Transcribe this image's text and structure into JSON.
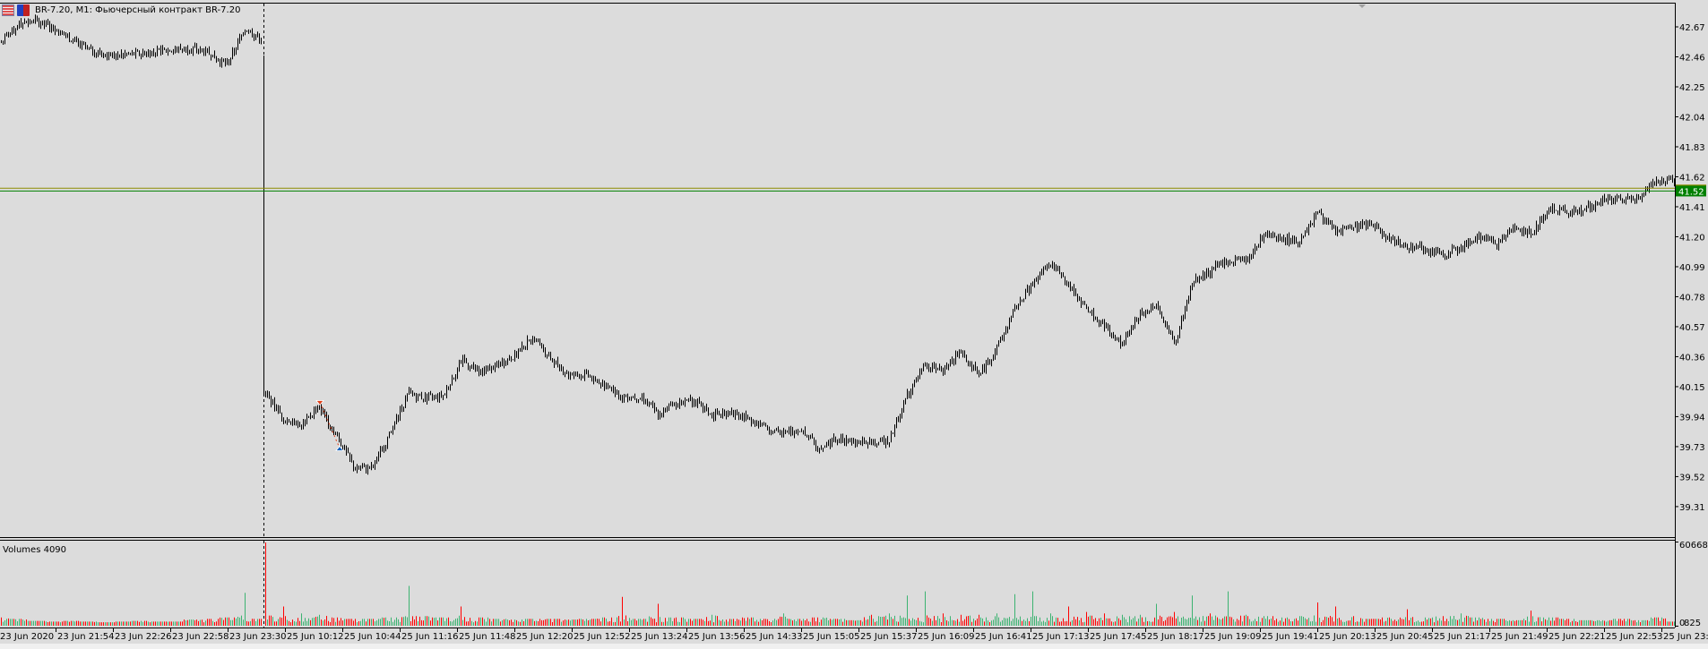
{
  "window": {
    "title": "BR-7.20, M1:  Фьючерсный контракт BR-7.20",
    "icons": [
      "chart-window-icon",
      "save-template-icon"
    ]
  },
  "colors": {
    "background": "#dcdcdc",
    "bars": "#000000",
    "bid_line": "#008000",
    "ask_line": "#8b8b00",
    "volume_up": "#3cb371",
    "volume_down": "#ff0000",
    "buy_marker": "#1560bd",
    "sell_marker": "#e0401a"
  },
  "price_axis": {
    "ticks": [
      "42.67",
      "42.46",
      "42.25",
      "42.04",
      "41.83",
      "41.62",
      "41.41",
      "41.20",
      "40.99",
      "40.78",
      "40.57",
      "40.36",
      "40.15",
      "39.94",
      "39.73",
      "39.52",
      "39.31"
    ],
    "current_price": "41.52",
    "ask_price": 41.54
  },
  "volume_pane": {
    "label": "Volumes 4090",
    "max_label": "60668",
    "min_label_zero": "0",
    "min_label": "825"
  },
  "time_axis": {
    "labels": [
      "23 Jun 2020",
      "23 Jun 21:54",
      "23 Jun 22:26",
      "23 Jun 22:58",
      "23 Jun 23:30",
      "25 Jun 10:12",
      "25 Jun 10:44",
      "25 Jun 11:16",
      "25 Jun 11:48",
      "25 Jun 12:20",
      "25 Jun 12:52",
      "25 Jun 13:24",
      "25 Jun 13:56",
      "25 Jun 14:33",
      "25 Jun 15:05",
      "25 Jun 15:37",
      "25 Jun 16:09",
      "25 Jun 16:41",
      "25 Jun 17:13",
      "25 Jun 17:45",
      "25 Jun 18:17",
      "25 Jun 19:09",
      "25 Jun 19:41",
      "25 Jun 20:13",
      "25 Jun 20:45",
      "25 Jun 21:17",
      "25 Jun 21:49",
      "25 Jun 22:21",
      "25 Jun 22:53",
      "25 Jun 23:25"
    ]
  },
  "chart_data": {
    "type": "ohlc-bars",
    "symbol": "BR-7.20",
    "timeframe": "M1",
    "ylim": [
      39.2,
      42.75
    ],
    "grid": false,
    "segments": [
      {
        "session": "23 Jun",
        "closes": [
          42.56,
          42.69,
          42.71,
          42.66,
          42.58,
          42.51,
          42.47,
          42.48,
          42.48,
          42.5,
          42.51,
          42.52,
          42.48,
          42.4,
          42.66,
          42.58
        ],
        "volumes": [
          6000,
          5000,
          3500,
          3000,
          3500,
          3000,
          2500,
          3000,
          3500,
          3000,
          3000,
          4500,
          5000,
          6000,
          24000,
          5000
        ]
      },
      {
        "session": "25 Jun",
        "closes": [
          40.1,
          39.93,
          39.87,
          40.02,
          39.8,
          39.58,
          39.58,
          39.83,
          40.1,
          40.07,
          40.09,
          40.34,
          40.25,
          40.3,
          40.37,
          40.5,
          40.35,
          40.23,
          40.23,
          40.16,
          40.08,
          40.08,
          39.96,
          40.03,
          40.06,
          39.95,
          39.97,
          39.93,
          39.86,
          39.82,
          39.86,
          39.72,
          39.79,
          39.76,
          39.75,
          39.78,
          40.1,
          40.29,
          40.27,
          40.4,
          40.22,
          40.42,
          40.68,
          40.87,
          41.02,
          40.86,
          40.7,
          40.58,
          40.44,
          40.65,
          40.72,
          40.45,
          40.88,
          40.96,
          41.04,
          41.03,
          41.23,
          41.19,
          41.16,
          41.38,
          41.23,
          41.27,
          41.29,
          41.18,
          41.13,
          41.12,
          41.07,
          41.12,
          41.2,
          41.15,
          41.27,
          41.22,
          41.4,
          41.37,
          41.39,
          41.46,
          41.45,
          41.48,
          41.6,
          41.6
        ],
        "volumes": [
          60668,
          14000,
          9000,
          8000,
          6000,
          5000,
          5000,
          6000,
          29000,
          7000,
          6000,
          14000,
          6000,
          5000,
          4500,
          5000,
          5000,
          4500,
          5000,
          6000,
          21000,
          5000,
          16000,
          6000,
          5000,
          8000,
          5000,
          6000,
          5000,
          9000,
          5000,
          6000,
          5000,
          4000,
          8000,
          9000,
          22000,
          25000,
          9000,
          8000,
          8000,
          9000,
          23000,
          25000,
          9000,
          14000,
          10000,
          9000,
          8000,
          8000,
          16000,
          10000,
          22000,
          9000,
          25000,
          8000,
          7000,
          6000,
          7000,
          17000,
          14000,
          7000,
          5000,
          6000,
          12000,
          6000,
          7000,
          9000,
          6000,
          5000,
          4000,
          11000,
          6000,
          5000,
          4000,
          4000,
          5000,
          4000,
          6000,
          3000
        ]
      }
    ],
    "volume_max": 60668,
    "trades": [
      {
        "type": "sell",
        "price": 40.04
      },
      {
        "type": "buy",
        "price": 39.72
      }
    ]
  }
}
